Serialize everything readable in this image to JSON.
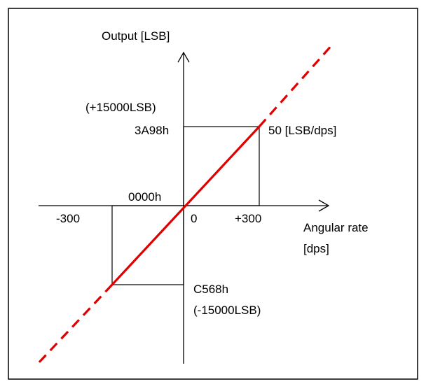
{
  "diagram": {
    "y_axis_label": "Output [LSB]",
    "x_axis_label_line1": "Angular rate",
    "x_axis_label_line2": "[dps]",
    "origin_hex": "0000h",
    "origin_value": "0",
    "x_pos_tick": "+300",
    "x_neg_tick": "-300",
    "pos_output_dec": "(+15000LSB)",
    "pos_output_hex": "3A98h",
    "neg_output_hex": "C568h",
    "neg_output_dec": "(-15000LSB)",
    "sensitivity_label": "50 [LSB/dps]",
    "colors": {
      "line": "#e00000",
      "axes": "#000000",
      "frame": "#000000"
    }
  }
}
